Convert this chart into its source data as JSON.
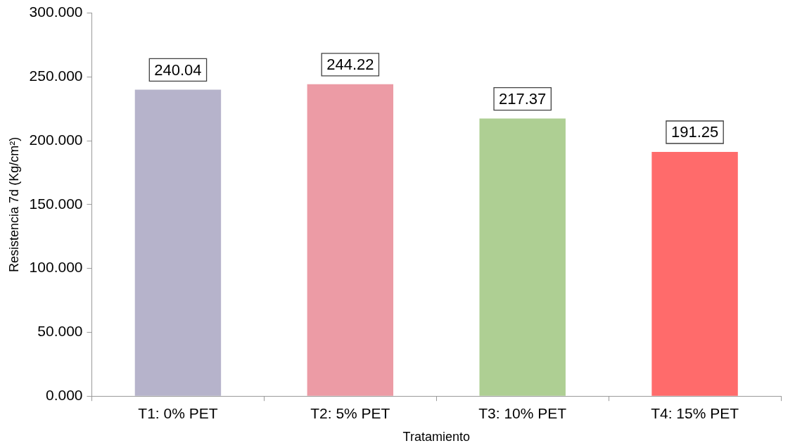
{
  "chart_data": {
    "type": "bar",
    "xlabel": "Tratamiento",
    "ylabel": "Resistencia 7d (Kg/cm²)",
    "categories": [
      "T1: 0% PET",
      "T2: 5% PET",
      "T3: 10% PET",
      "T4: 15% PET"
    ],
    "values": [
      240.04,
      244.22,
      217.37,
      191.25
    ],
    "colors": [
      "#b6b3cb",
      "#ec9ba5",
      "#aecf93",
      "#ff6b6b"
    ],
    "ylim": [
      0,
      300
    ],
    "yticks": [
      {
        "value": 0,
        "label": "0.000"
      },
      {
        "value": 50,
        "label": "50.000"
      },
      {
        "value": 100,
        "label": "100.000"
      },
      {
        "value": 150,
        "label": "150.000"
      },
      {
        "value": 200,
        "label": "200.000"
      },
      {
        "value": 250,
        "label": "250.000"
      },
      {
        "value": 300,
        "label": "300.000"
      }
    ],
    "data_labels": true,
    "grid": false,
    "legend": false
  }
}
